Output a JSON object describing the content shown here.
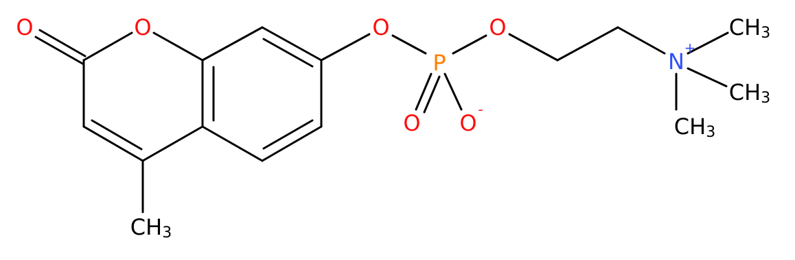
{
  "atoms": [
    {
      "label": "O"
    },
    {
      "label": "O"
    },
    {
      "label": "O"
    },
    {
      "label": "P"
    },
    {
      "label": "O"
    },
    {
      "label": "O"
    },
    {
      "label": "O",
      "charge": "-"
    },
    {
      "label": "N",
      "charge": "+"
    },
    {
      "label": "CH",
      "sub": "3"
    },
    {
      "label": "CH",
      "sub": "3"
    },
    {
      "label": "CH",
      "sub": "3"
    },
    {
      "label": "CH",
      "sub": "3"
    }
  ]
}
